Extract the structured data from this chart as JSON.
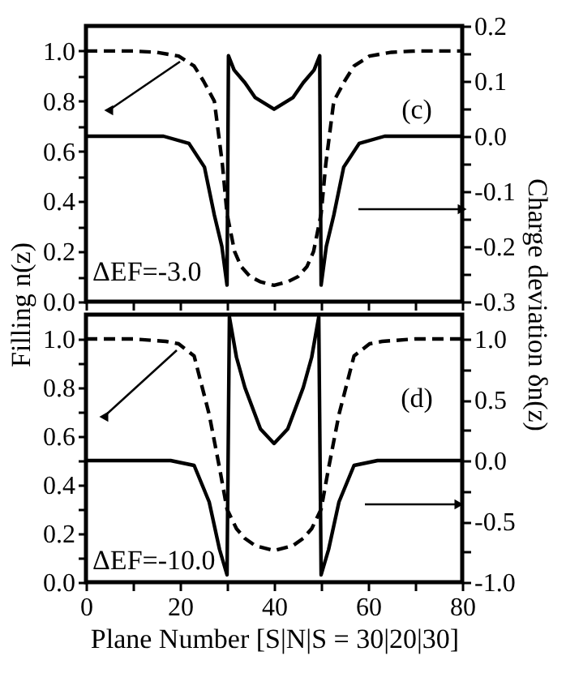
{
  "chart_data": [
    {
      "type": "line",
      "annotations": [
        "(c)",
        "ΔEF=-3.0"
      ],
      "ylabel": "Filling n(z)",
      "y2label": "Charge deviation δn(z)",
      "tick_labels": "y",
      "xlim": [
        0,
        80
      ],
      "xticks": [
        0,
        {
          "value": 10,
          "label": null
        },
        20,
        {
          "value": 30,
          "label": null
        },
        40,
        {
          "value": 50,
          "label": null
        },
        60,
        {
          "value": 70,
          "label": null
        },
        80
      ],
      "ylim": [
        0,
        1.1
      ],
      "yticks": [
        {
          "value": 0,
          "label": "0.0"
        },
        {
          "value": 0.1,
          "label": null
        },
        0.2,
        {
          "value": 0.3,
          "label": null
        },
        0.4,
        {
          "value": 0.5,
          "label": null
        },
        0.6,
        {
          "value": 0.7,
          "label": null
        },
        0.8,
        {
          "value": 0.9,
          "label": null
        },
        {
          "value": 1,
          "label": "1.0"
        }
      ],
      "y2lim": [
        -0.3,
        0.2
      ],
      "y2ticks": [
        -0.3,
        {
          "value": -0.25,
          "label": null
        },
        -0.2,
        {
          "value": -0.15,
          "label": null
        },
        -0.1,
        {
          "value": -0.05,
          "label": null
        },
        {
          "value": 0,
          "label": "0.0"
        },
        {
          "value": 0.05,
          "label": null
        },
        0.1,
        {
          "value": 0.15,
          "label": null
        },
        0.2
      ],
      "series": [
        {
          "color": "#000000",
          "line_style": "dashed",
          "x": [
            0,
            10,
            15,
            19.7,
            23,
            25,
            27.3,
            29,
            30,
            31.6,
            33,
            34.9,
            37,
            40,
            43,
            45.1,
            47,
            48.4,
            50,
            51,
            52.7,
            55,
            57,
            60.3,
            65,
            70,
            80
          ],
          "values": [
            1.0,
            1.0,
            0.995,
            0.98,
            0.94,
            0.88,
            0.8,
            0.55,
            0.35,
            0.2,
            0.14,
            0.1,
            0.08,
            0.065,
            0.08,
            0.1,
            0.14,
            0.2,
            0.35,
            0.55,
            0.8,
            0.88,
            0.94,
            0.98,
            0.995,
            1.0,
            1.0
          ]
        },
        {
          "color": "#000000",
          "line_style": "solid",
          "axis": "y2",
          "x": [
            0,
            10,
            16.5,
            21.9,
            25.2,
            27.3,
            28.9,
            30,
            30.3,
            31.5,
            33.8,
            36,
            40,
            44,
            46.2,
            48.5,
            49.7,
            50,
            51.1,
            52.7,
            54.8,
            58.1,
            63.5,
            70,
            80
          ],
          "values": [
            0,
            0,
            0,
            -0.013,
            -0.056,
            -0.143,
            -0.2,
            -0.27,
            0.146,
            0.12,
            0.097,
            0.07,
            0.049,
            0.07,
            0.097,
            0.12,
            0.146,
            -0.27,
            -0.2,
            -0.143,
            -0.056,
            -0.013,
            0,
            0,
            0
          ]
        }
      ]
    },
    {
      "type": "line",
      "annotations": [
        "(d)",
        "ΔEF=-10.0"
      ],
      "xlabel": "Plane Number [S|N|S = 30|20|30]",
      "xlim": [
        0,
        80
      ],
      "xticks": [
        0,
        {
          "value": 10,
          "label": null
        },
        20,
        {
          "value": 30,
          "label": null
        },
        40,
        {
          "value": 50,
          "label": null
        },
        60,
        {
          "value": 70,
          "label": null
        },
        80
      ],
      "ylim": [
        0,
        1.1
      ],
      "yticks": [
        {
          "value": 0,
          "label": "0.0"
        },
        {
          "value": 0.1,
          "label": null
        },
        0.2,
        {
          "value": 0.3,
          "label": null
        },
        0.4,
        {
          "value": 0.5,
          "label": null
        },
        0.6,
        {
          "value": 0.7,
          "label": null
        },
        0.8,
        {
          "value": 0.9,
          "label": null
        },
        {
          "value": 1,
          "label": "1.0"
        }
      ],
      "y2lim": [
        -1.0,
        1.2
      ],
      "y2ticks": [
        {
          "value": -1,
          "label": "-1.0"
        },
        {
          "value": -0.75,
          "label": null
        },
        -0.5,
        {
          "value": -0.25,
          "label": null
        },
        {
          "value": 0,
          "label": "0.0"
        },
        {
          "value": 0.25,
          "label": null
        },
        0.5,
        {
          "value": 0.75,
          "label": null
        },
        {
          "value": 1,
          "label": "1.0"
        }
      ],
      "series": [
        {
          "color": "#000000",
          "line_style": "dashed",
          "x": [
            0,
            10,
            17,
            19.7,
            23,
            26.2,
            28.4,
            30,
            32,
            33.8,
            36,
            40,
            44,
            46.2,
            48,
            50,
            51.6,
            53.8,
            57,
            60.3,
            63,
            70,
            80
          ],
          "values": [
            1.0,
            1.0,
            0.99,
            0.98,
            0.93,
            0.69,
            0.47,
            0.3,
            0.22,
            0.18,
            0.15,
            0.13,
            0.15,
            0.18,
            0.22,
            0.3,
            0.47,
            0.69,
            0.93,
            0.98,
            0.99,
            1.0,
            1.0
          ]
        },
        {
          "color": "#000000",
          "line_style": "solid",
          "axis": "y2",
          "x": [
            0,
            10,
            18,
            23,
            26.2,
            28.4,
            30,
            30.5,
            32,
            33.8,
            37.1,
            40,
            42.9,
            46.2,
            48,
            49.5,
            50,
            51.6,
            53.8,
            57,
            62,
            70,
            80
          ],
          "values": [
            0,
            0,
            0,
            -0.04,
            -0.34,
            -0.73,
            -0.94,
            1.18,
            0.85,
            0.6,
            0.26,
            0.14,
            0.26,
            0.6,
            0.85,
            1.18,
            -0.94,
            -0.73,
            -0.34,
            -0.04,
            0,
            0,
            0
          ]
        }
      ]
    }
  ]
}
